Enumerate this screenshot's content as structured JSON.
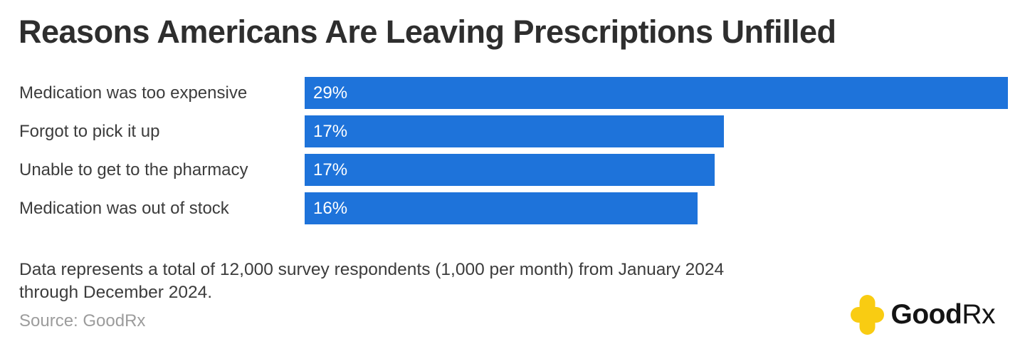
{
  "title": "Reasons Americans Are Leaving Prescriptions Unfilled",
  "chart_data": {
    "type": "bar",
    "orientation": "horizontal",
    "title": "Reasons Americans Are Leaving Prescriptions Unfilled",
    "categories": [
      "Medication was too expensive",
      "Forgot to pick it up",
      "Unable to get to the pharmacy",
      "Medication was out of stock"
    ],
    "values": [
      29,
      17.3,
      16.9,
      16.2
    ],
    "display_labels": [
      "29%",
      "17%",
      "17%",
      "16%"
    ],
    "xlim": [
      0,
      29
    ],
    "grid": false,
    "legend": "none",
    "bar_color": "#1e73da",
    "value_label_color": "#ffffff"
  },
  "footnote_lines": [
    "Data represents a total of 12,000 survey respondents (1,000 per month) from January 2024",
    "through December 2024."
  ],
  "source": "Source: GoodRx",
  "logo": {
    "name": "GoodRx",
    "text_bold": "Good",
    "text_regular": "Rx",
    "cross_color": "#f9cc12",
    "text_color": "#141414"
  },
  "colors": {
    "background": "#ffffff",
    "title_text": "#2e2e2e",
    "label_text": "#3c3c3c",
    "source_text": "#9c9c9c"
  }
}
